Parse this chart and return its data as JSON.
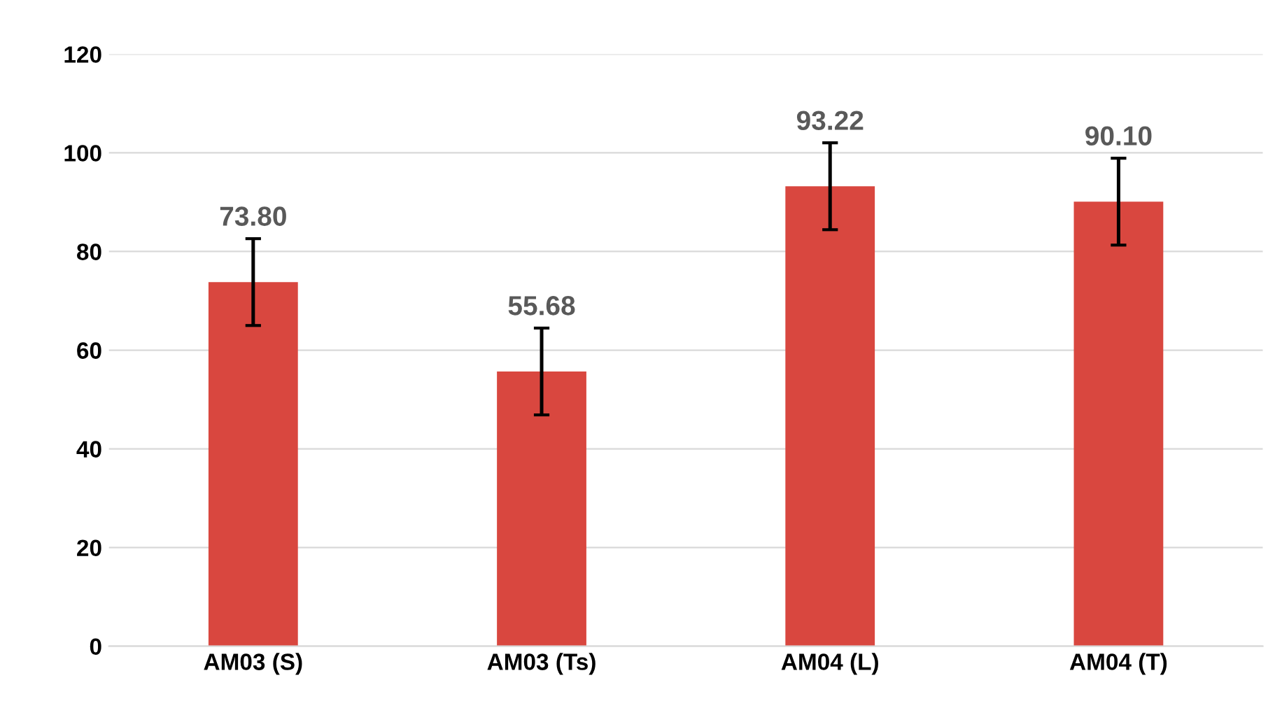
{
  "chart_data": {
    "type": "bar",
    "categories": [
      "AM03 (S)",
      "AM03 (Ts)",
      "AM04 (L)",
      "AM04 (T)"
    ],
    "values": [
      73.8,
      55.68,
      93.22,
      90.1
    ],
    "value_labels": [
      "73.80",
      "55.68",
      "93.22",
      "90.10"
    ],
    "errors": [
      8.8,
      8.8,
      8.8,
      8.8
    ],
    "color": "#d9473f",
    "ylim": [
      0,
      120
    ],
    "yticks": [
      0,
      20,
      40,
      60,
      80,
      100,
      120
    ],
    "grid": "y"
  }
}
